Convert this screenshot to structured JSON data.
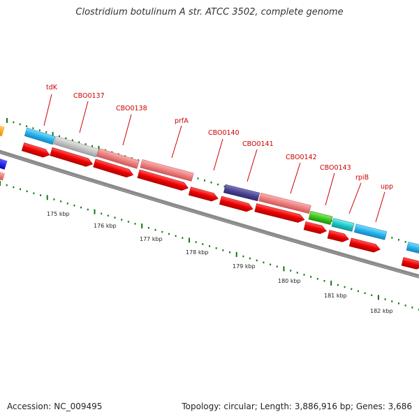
{
  "title": "Clostridium botulinum A str. ATCC 3502, complete genome",
  "footer": {
    "accession": "Accession: NC_009495",
    "stats": "Topology: circular; Length: 3,886,916 bp; Genes: 3,686"
  },
  "colors": {
    "label_red": "#cc0000",
    "cds_red": "#ee0000",
    "tick_green": "#117711",
    "backbone": "#8a8a8a"
  },
  "kbp_labels": [
    "175 kbp",
    "176 kbp",
    "177 kbp",
    "178 kbp",
    "179 kbp",
    "180 kbp",
    "181 kbp",
    "182 kbp"
  ],
  "gene_labels": [
    "tdK",
    "CBO0137",
    "CBO0138",
    "prfA",
    "CBO0140",
    "CBO0141",
    "CBO0142",
    "CBO0143",
    "rpiB",
    "upp"
  ]
}
